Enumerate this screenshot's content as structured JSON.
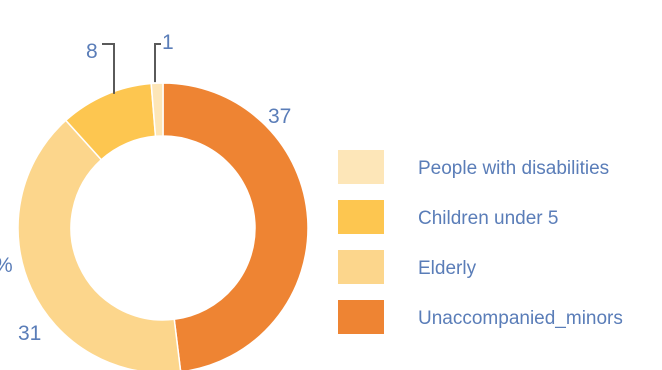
{
  "chart_data": {
    "type": "pie",
    "variant": "donut",
    "title": "",
    "series": [
      {
        "name": "Unaccompanied_minors",
        "value": 37,
        "label": "37",
        "color": "#ee8433"
      },
      {
        "name": "Elderly",
        "value": 31,
        "label": "31",
        "color": "#fcd68c"
      },
      {
        "name": "Children under 5",
        "value": 8,
        "label": "8",
        "color": "#fdc650"
      },
      {
        "name": "People with disabilities",
        "value": 1,
        "label": "1",
        "color": "#fde6b8"
      }
    ],
    "legend": {
      "placement": "right",
      "entries": [
        "People with disabilities",
        "Children under 5",
        "Elderly",
        "Unaccompanied_minors"
      ]
    },
    "partial_label": "%"
  }
}
